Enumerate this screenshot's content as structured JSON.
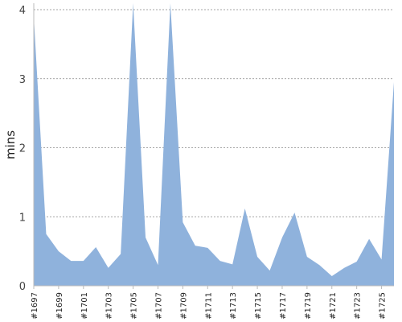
{
  "chart_data": {
    "type": "area",
    "ylabel": "mins",
    "xlabel": "",
    "ylim": [
      0,
      4
    ],
    "y_ticks": [
      "0",
      "1",
      "2",
      "3",
      "4"
    ],
    "grid": "horizontal dashed",
    "legend": "none",
    "colors": {
      "fill": "#8fb2dc",
      "grid": "#888888",
      "axis": "#bbbbbb"
    },
    "x": [
      "#1697",
      "#1698",
      "#1699",
      "#1700",
      "#1701",
      "#1702",
      "#1703",
      "#1704",
      "#1705",
      "#1706",
      "#1707",
      "#1708",
      "#1709",
      "#1710",
      "#1711",
      "#1712",
      "#1713",
      "#1714",
      "#1715",
      "#1716",
      "#1717",
      "#1718",
      "#1719",
      "#1720",
      "#1721",
      "#1722",
      "#1723",
      "#1724",
      "#1725",
      "#1726"
    ],
    "x_tick_labels": [
      "#1697",
      "#1699",
      "#1701",
      "#1703",
      "#1705",
      "#1707",
      "#1709",
      "#1711",
      "#1713",
      "#1715",
      "#1717",
      "#1719",
      "#1721",
      "#1723",
      "#1725"
    ],
    "values": [
      3.9,
      0.75,
      0.5,
      0.36,
      0.36,
      0.56,
      0.26,
      0.46,
      4.1,
      0.7,
      0.3,
      4.1,
      0.92,
      0.58,
      0.55,
      0.36,
      0.31,
      1.12,
      0.42,
      0.22,
      0.7,
      1.06,
      0.42,
      0.3,
      0.14,
      0.26,
      0.35,
      0.68,
      0.38,
      2.95
    ]
  }
}
